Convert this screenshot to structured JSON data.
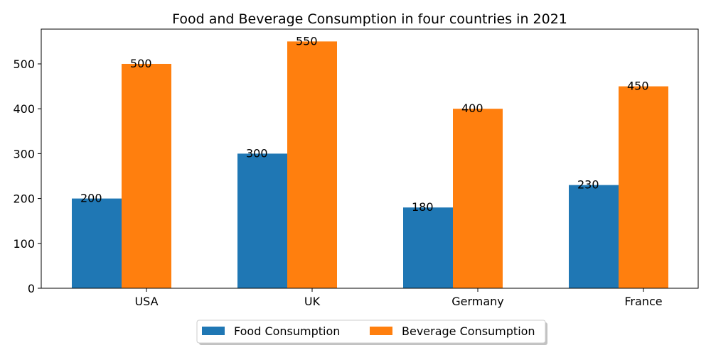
{
  "chart_data": {
    "type": "bar",
    "title": "Food and Beverage Consumption in four countries in 2021",
    "xlabel": "",
    "ylabel": "",
    "categories": [
      "USA",
      "UK",
      "Germany",
      "France"
    ],
    "series": [
      {
        "name": "Food Consumption",
        "values": [
          200,
          300,
          180,
          230
        ],
        "color": "#1f77b4"
      },
      {
        "name": "Beverage Consumption",
        "values": [
          500,
          550,
          400,
          450
        ],
        "color": "#ff7f0e"
      }
    ],
    "ylim": [
      0,
      577.5
    ],
    "yticks": [
      0,
      100,
      200,
      300,
      400,
      500
    ],
    "grid": false,
    "legend_placement": "bottom-center"
  }
}
